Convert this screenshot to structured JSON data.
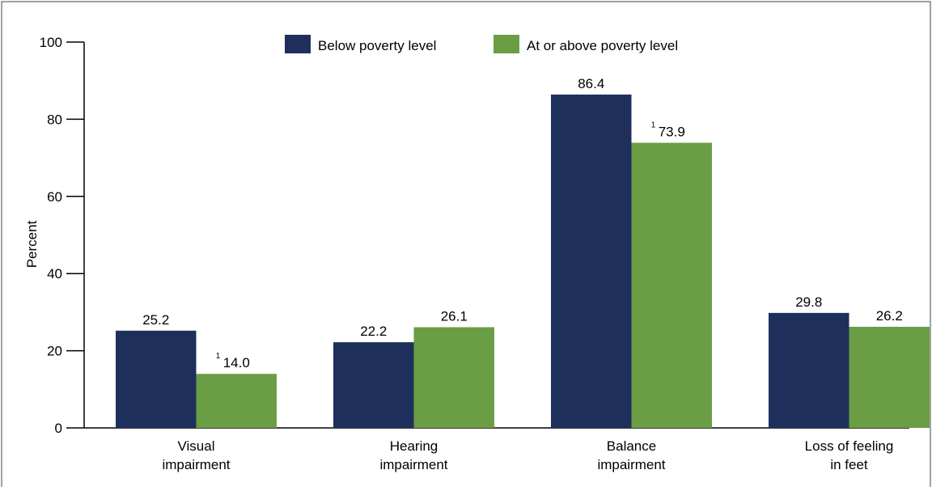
{
  "chart_data": {
    "type": "bar",
    "ylabel": "Percent",
    "xlabel": "",
    "ylim": [
      0,
      100
    ],
    "yticks": [
      "0",
      "20",
      "40",
      "60",
      "80",
      "100"
    ],
    "grid": false,
    "legend_position": "top",
    "categories": [
      [
        "Visual",
        "impairment"
      ],
      [
        "Hearing",
        "impairment"
      ],
      [
        "Balance",
        "impairment"
      ],
      [
        "Loss of feeling",
        "in feet"
      ]
    ],
    "series": [
      {
        "name": "Below poverty level",
        "color": "#1f2f5c",
        "values": [
          25.2,
          22.2,
          86.4,
          29.8
        ],
        "labels": [
          "25.2",
          "22.2",
          "86.4",
          "29.8"
        ],
        "footnotes": [
          "",
          "",
          "",
          ""
        ]
      },
      {
        "name": "At or above poverty level",
        "color": "#6b9d45",
        "values": [
          14.0,
          26.1,
          73.9,
          26.2
        ],
        "labels": [
          "14.0",
          "26.1",
          "73.9",
          "26.2"
        ],
        "footnotes": [
          "1",
          "",
          "1",
          ""
        ]
      }
    ]
  }
}
